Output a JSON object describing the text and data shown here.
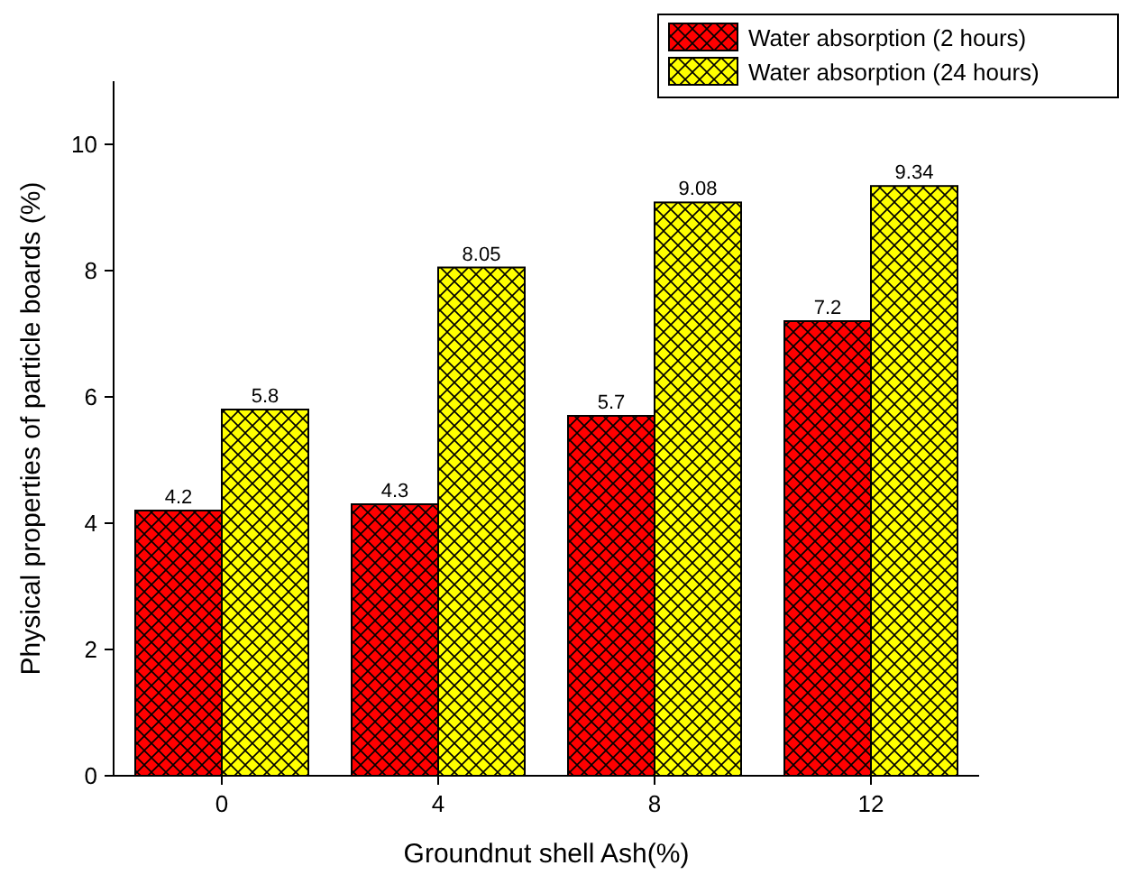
{
  "chart_data": {
    "type": "bar",
    "xlabel": "Groundnut shell Ash(%)",
    "ylabel": "Physical properties of particle boards (%)",
    "categories": [
      "0",
      "4",
      "8",
      "12"
    ],
    "series": [
      {
        "name": "Water absorption (2 hours)",
        "color": "#ff0000",
        "values": [
          4.2,
          4.3,
          5.7,
          7.2
        ]
      },
      {
        "name": "Water absorption (24 hours)",
        "color": "#ffff00",
        "values": [
          5.8,
          8.05,
          9.08,
          9.34
        ]
      }
    ],
    "ylim": [
      0,
      11
    ],
    "yticks": [
      0,
      2,
      4,
      6,
      8,
      10
    ],
    "data_labels": true,
    "legend": "top right"
  }
}
